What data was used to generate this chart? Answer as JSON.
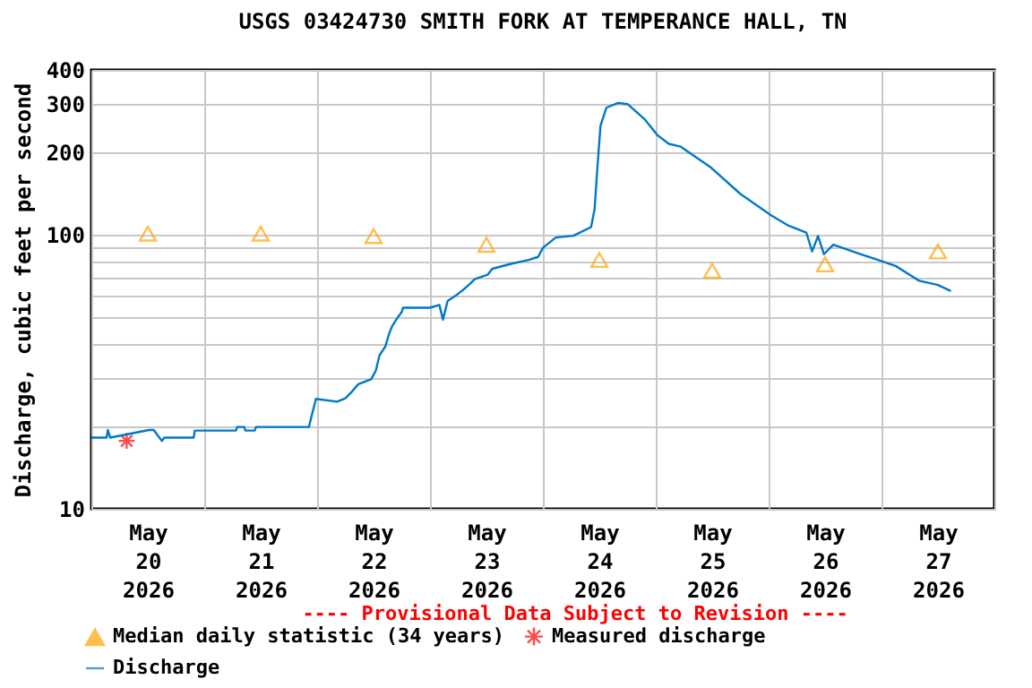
{
  "chart_data": {
    "type": "line",
    "title": "USGS 03424730 SMITH FORK AT TEMPERANCE HALL, TN",
    "ylabel": "Discharge, cubic feet per second",
    "annotations": [
      "---- Provisional Data Subject to Revision ----"
    ],
    "xlim": [
      "2026-05-20T00:00",
      "2026-05-28T00:00"
    ],
    "xticks": [
      {
        "value": "2026-05-20T00:00",
        "label": null
      },
      {
        "value": "2026-05-20T12:00",
        "label": "May 20 2026"
      },
      {
        "value": "2026-05-21T00:00",
        "label": null
      },
      {
        "value": "2026-05-21T12:00",
        "label": "May 21 2026"
      },
      {
        "value": "2026-05-22T00:00",
        "label": null
      },
      {
        "value": "2026-05-22T12:00",
        "label": "May 22 2026"
      },
      {
        "value": "2026-05-23T00:00",
        "label": null
      },
      {
        "value": "2026-05-23T12:00",
        "label": "May 23 2026"
      },
      {
        "value": "2026-05-24T00:00",
        "label": null
      },
      {
        "value": "2026-05-24T12:00",
        "label": "May 24 2026"
      },
      {
        "value": "2026-05-25T00:00",
        "label": null
      },
      {
        "value": "2026-05-25T12:00",
        "label": "May 25 2026"
      },
      {
        "value": "2026-05-26T00:00",
        "label": null
      },
      {
        "value": "2026-05-26T12:00",
        "label": "May 26 2026"
      },
      {
        "value": "2026-05-27T00:00",
        "label": null
      },
      {
        "value": "2026-05-27T12:00",
        "label": "May 27 2026"
      },
      {
        "value": "2026-05-28T00:00",
        "label": null
      }
    ],
    "ylim": [
      10,
      400
    ],
    "yticks": [
      10,
      {
        "value": 20,
        "label": null
      },
      {
        "value": 30,
        "label": null
      },
      {
        "value": 40,
        "label": null
      },
      {
        "value": 50,
        "label": null
      },
      {
        "value": 60,
        "label": null
      },
      {
        "value": 70,
        "label": null
      },
      {
        "value": 80,
        "label": null
      },
      {
        "value": 90,
        "label": null
      },
      100,
      200,
      300,
      400
    ],
    "log": true,
    "grid": true,
    "legend": "bottom",
    "series": [
      {
        "name": "Median daily statistic (34 years)",
        "type": "scatter",
        "marker": "triangle",
        "color": "#ffa500",
        "x": [
          "2026-05-20T12:00",
          "2026-05-21T12:00",
          "2026-05-22T12:00",
          "2026-05-23T12:00",
          "2026-05-24T12:00",
          "2026-05-25T12:00",
          "2026-05-26T12:00",
          "2026-05-27T12:00"
        ],
        "values": [
          101,
          101,
          99,
          92,
          81,
          74,
          78,
          87
        ]
      },
      {
        "name": "Measured discharge",
        "type": "scatter",
        "marker": "cross",
        "color": "#ff0000",
        "x": [
          "2026-05-20T07:30"
        ],
        "values": [
          17.7
        ]
      },
      {
        "name": "Discharge",
        "type": "line",
        "color": "#0078c8",
        "x": [
          "2026-05-20T00:00",
          "2026-05-20T03:15",
          "2026-05-20T03:30",
          "2026-05-20T04:00",
          "2026-05-20T12:15",
          "2026-05-20T13:15",
          "2026-05-20T15:00",
          "2026-05-20T15:30",
          "2026-05-20T21:45",
          "2026-05-20T22:00",
          "2026-05-21T06:45",
          "2026-05-21T07:00",
          "2026-05-21T08:30",
          "2026-05-21T08:45",
          "2026-05-21T10:45",
          "2026-05-21T11:00",
          "2026-05-21T22:15",
          "2026-05-21T23:45",
          "2026-05-22T04:15",
          "2026-05-22T06:00",
          "2026-05-22T07:30",
          "2026-05-22T08:45",
          "2026-05-22T11:30",
          "2026-05-22T12:30",
          "2026-05-22T13:15",
          "2026-05-22T14:30",
          "2026-05-22T15:15",
          "2026-05-22T16:00",
          "2026-05-22T17:15",
          "2026-05-22T18:00",
          "2026-05-22T18:15",
          "2026-05-23T00:00",
          "2026-05-23T02:00",
          "2026-05-23T02:45",
          "2026-05-23T03:45",
          "2026-05-23T05:45",
          "2026-05-23T07:00",
          "2026-05-23T08:30",
          "2026-05-23T09:30",
          "2026-05-23T12:15",
          "2026-05-23T13:15",
          "2026-05-23T17:15",
          "2026-05-23T21:00",
          "2026-05-23T23:00",
          "2026-05-24T00:00",
          "2026-05-24T02:45",
          "2026-05-24T06:30",
          "2026-05-24T10:15",
          "2026-05-24T11:00",
          "2026-05-24T11:30",
          "2026-05-24T12:15",
          "2026-05-24T13:30",
          "2026-05-24T16:00",
          "2026-05-24T18:00",
          "2026-05-24T21:45",
          "2026-05-25T00:15",
          "2026-05-25T02:45",
          "2026-05-25T05:15",
          "2026-05-25T11:45",
          "2026-05-25T18:00",
          "2026-05-26T00:30",
          "2026-05-26T04:15",
          "2026-05-26T08:00",
          "2026-05-26T09:15",
          "2026-05-26T10:30",
          "2026-05-26T11:45",
          "2026-05-26T13:45",
          "2026-05-26T19:30",
          "2026-05-26T23:15",
          "2026-05-27T03:00",
          "2026-05-27T08:00",
          "2026-05-27T12:00",
          "2026-05-27T14:45"
        ],
        "values": [
          18.2,
          18.2,
          19.4,
          18.2,
          19.4,
          19.4,
          17.7,
          18.2,
          18.2,
          19.3,
          19.3,
          19.9,
          19.9,
          19.3,
          19.3,
          19.9,
          19.9,
          25.2,
          24.6,
          25.3,
          26.9,
          28.5,
          29.7,
          32,
          36.3,
          39.1,
          43.3,
          46.6,
          50.3,
          52.3,
          54.2,
          54.2,
          55.5,
          49,
          57.4,
          60.5,
          62.9,
          66.2,
          68.9,
          71.5,
          75.2,
          78.4,
          81,
          83.1,
          89.7,
          97.8,
          99.3,
          106.7,
          124,
          167,
          250,
          291,
          303,
          300,
          263,
          232,
          215,
          210,
          176,
          141,
          118,
          108,
          102,
          87,
          99,
          85,
          92,
          85,
          81,
          77,
          68,
          65.6,
          62.4
        ]
      }
    ]
  }
}
